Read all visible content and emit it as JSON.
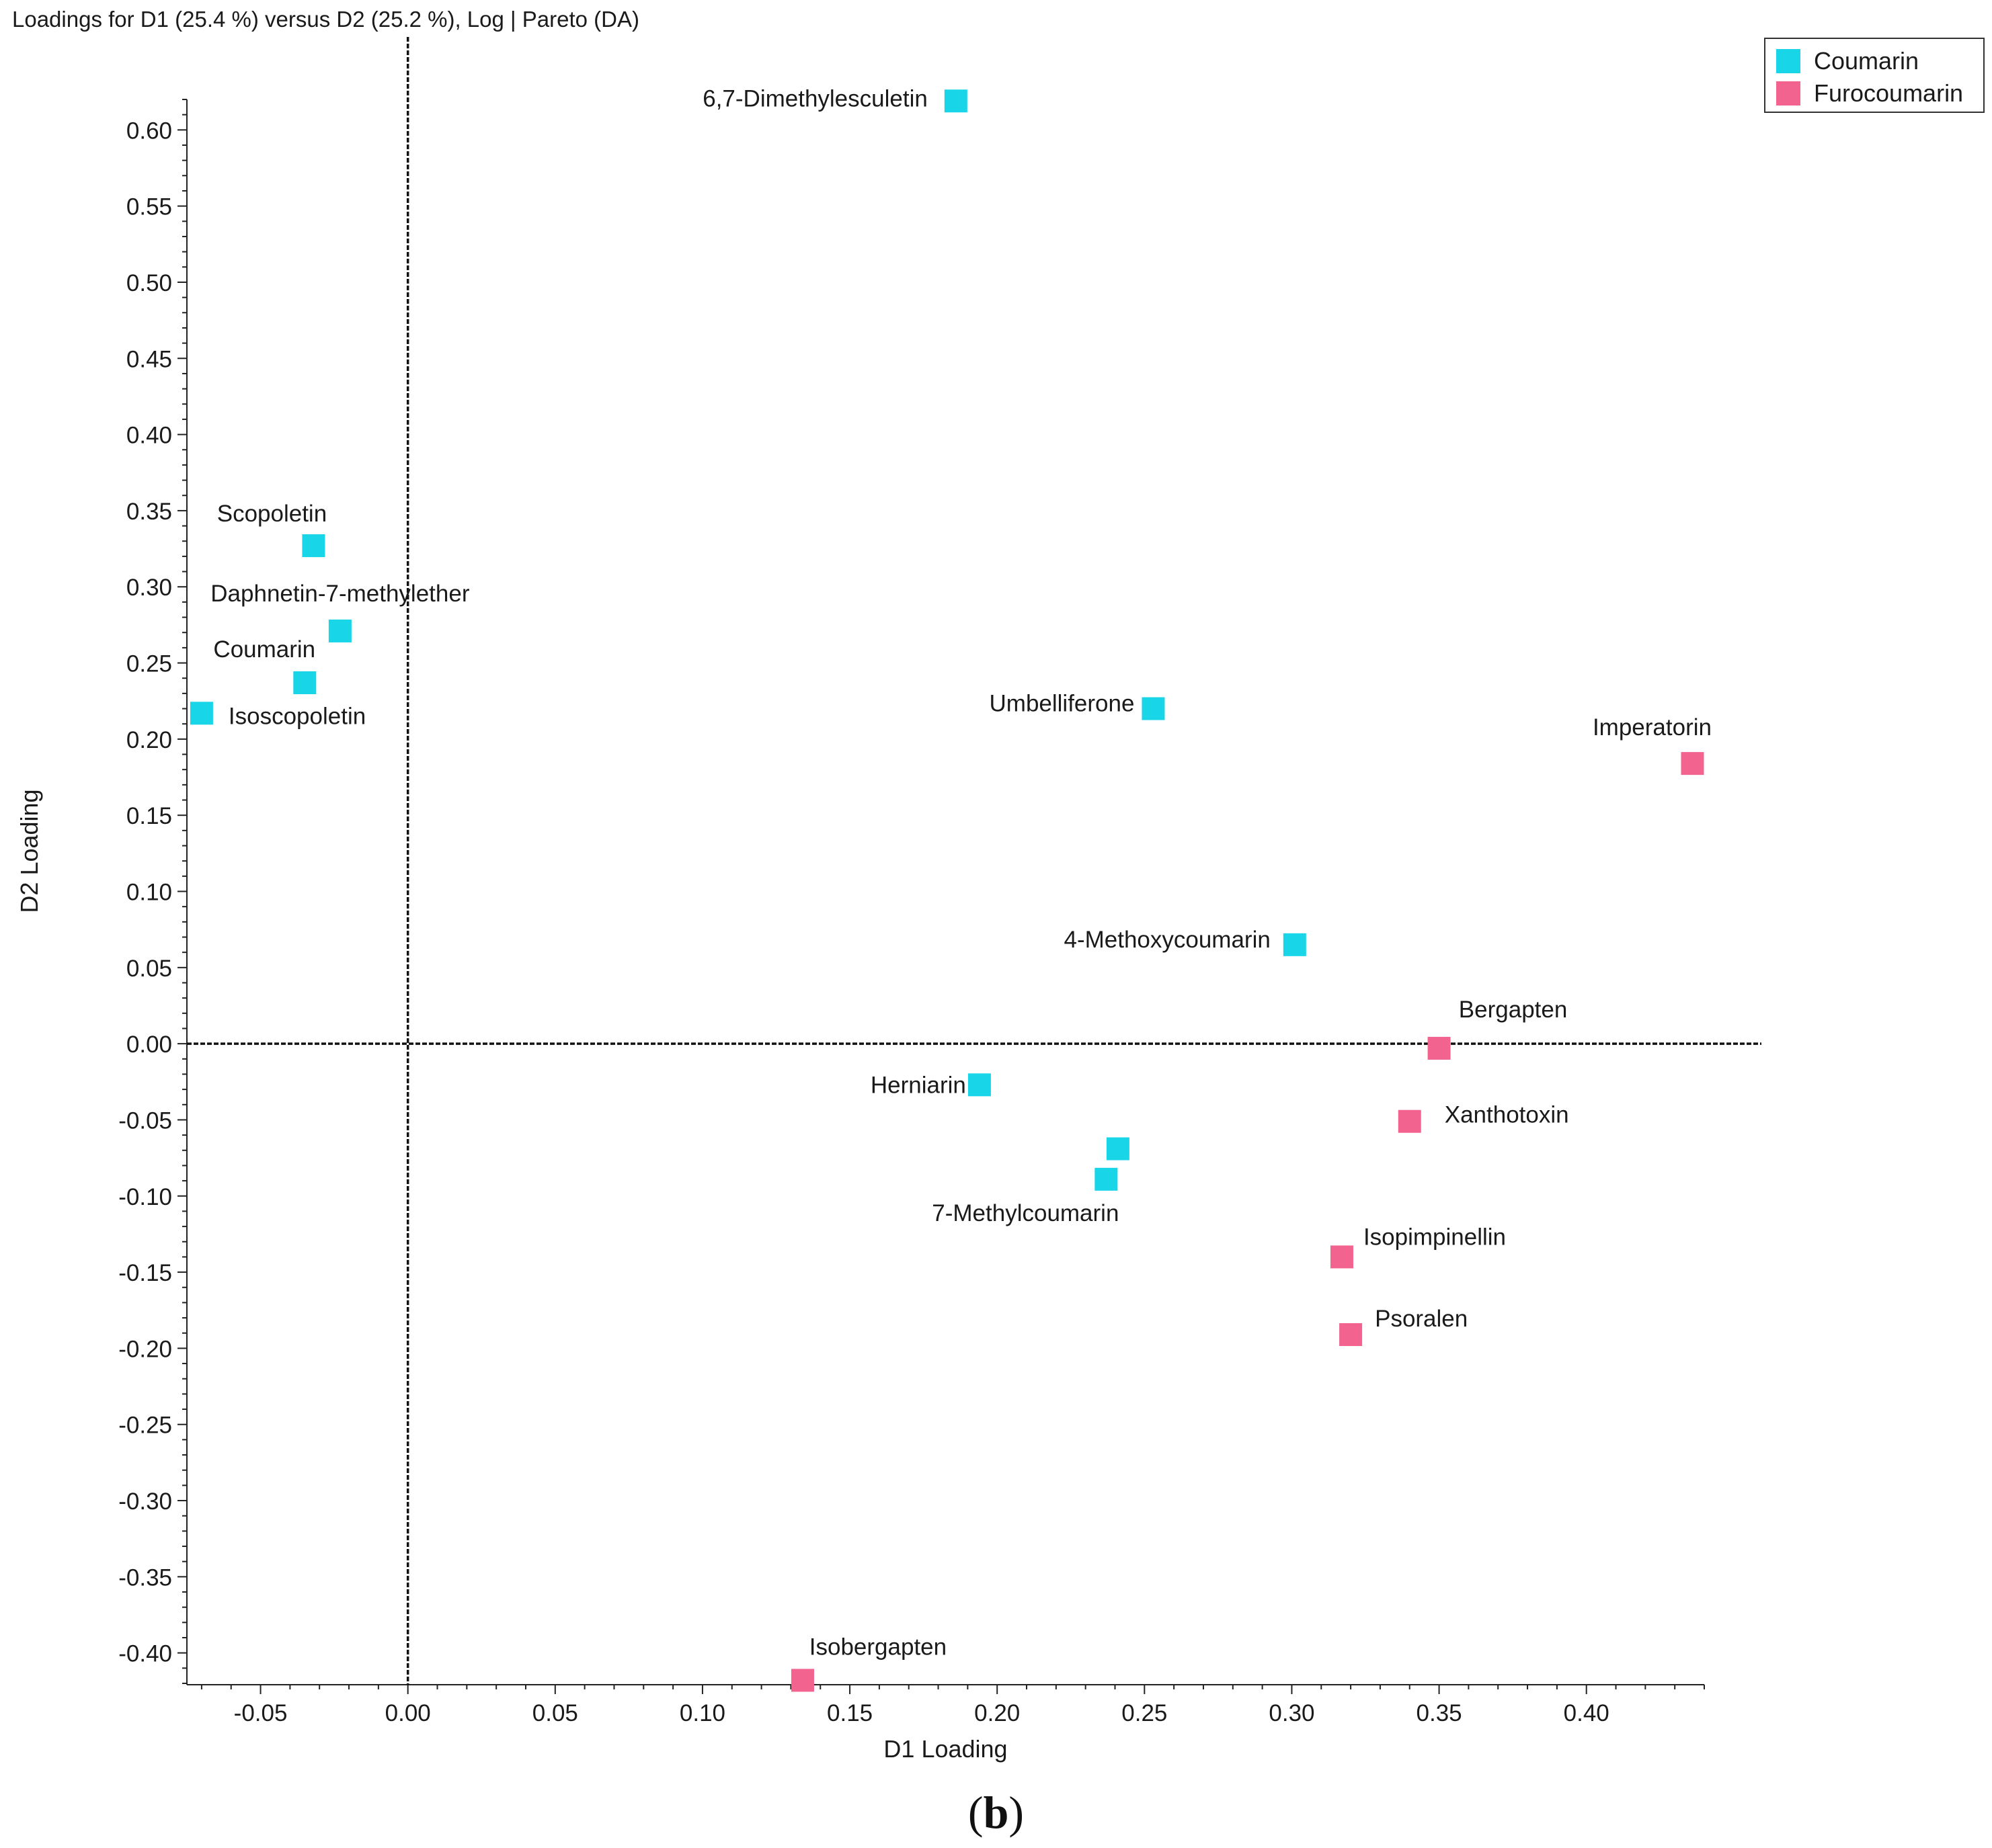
{
  "chart_data": {
    "type": "scatter",
    "title": "Loadings for D1 (25.4 %) versus D2 (25.2 %), Log | Pareto (DA)",
    "xlabel": "D1 Loading",
    "ylabel": "D2 Loading",
    "xlim": [
      -0.075,
      0.44
    ],
    "ylim": [
      -0.42,
      0.62
    ],
    "xticks": [
      "-0.05",
      "0.00",
      "0.05",
      "0.10",
      "0.15",
      "0.20",
      "0.25",
      "0.30",
      "0.35",
      "0.40"
    ],
    "yticks": [
      "0.60",
      "0.55",
      "0.50",
      "0.45",
      "0.40",
      "0.35",
      "0.30",
      "0.25",
      "0.20",
      "0.15",
      "0.10",
      "0.05",
      "0.00",
      "-0.05",
      "-0.10",
      "-0.15",
      "-0.20",
      "-0.25",
      "-0.30",
      "-0.35",
      "-0.40"
    ],
    "legend": [
      {
        "name": "Coumarin",
        "color": "#19d5e8"
      },
      {
        "name": "Furocoumarin",
        "color": "#f2638f"
      }
    ],
    "legend_position": "top-right",
    "series": [
      {
        "name": "Coumarin",
        "color": "#19d5e8",
        "points": [
          {
            "label": "6,7-Dimethylesculetin",
            "x": 0.186,
            "y": 0.619
          },
          {
            "label": "Scopoletin",
            "x": -0.032,
            "y": 0.327
          },
          {
            "label": "Daphnetin-7-methylether",
            "x": -0.023,
            "y": 0.271
          },
          {
            "label": "Coumarin",
            "x": -0.035,
            "y": 0.237
          },
          {
            "label": "Isoscopoletin",
            "x": -0.07,
            "y": 0.217
          },
          {
            "label": "Umbelliferone",
            "x": 0.253,
            "y": 0.22
          },
          {
            "label": "4-Methoxycoumarin",
            "x": 0.301,
            "y": 0.065
          },
          {
            "label": "Herniarin",
            "x": 0.194,
            "y": -0.027
          },
          {
            "label": "",
            "x": 0.241,
            "y": -0.069
          },
          {
            "label": "7-Methylcoumarin",
            "x": 0.237,
            "y": -0.089
          }
        ]
      },
      {
        "name": "Furocoumarin",
        "color": "#f2638f",
        "points": [
          {
            "label": "Imperatorin",
            "x": 0.436,
            "y": 0.184
          },
          {
            "label": "Bergapten",
            "x": 0.35,
            "y": -0.003
          },
          {
            "label": "Xanthotoxin",
            "x": 0.34,
            "y": -0.051
          },
          {
            "label": "Isopimpinellin",
            "x": 0.317,
            "y": -0.14
          },
          {
            "label": "Psoralen",
            "x": 0.32,
            "y": -0.191
          },
          {
            "label": "Isobergapten",
            "x": 0.134,
            "y": -0.418
          }
        ]
      }
    ],
    "reference_lines": {
      "x": 0.0,
      "y": 0.0
    },
    "grid": false
  },
  "caption": {
    "open": "(",
    "letter": "b",
    "close": ")"
  }
}
